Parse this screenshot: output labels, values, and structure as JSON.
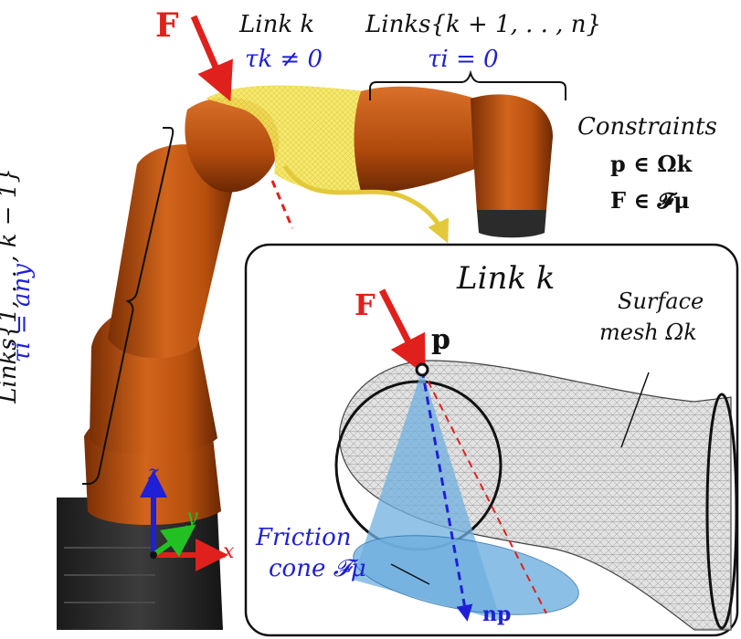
{
  "force_label": "F",
  "link_k": {
    "name": "Link k",
    "torque": "τk ≠ 0"
  },
  "links_distal": {
    "name": "Links{k + 1, . . , n}",
    "torque": "τi = 0"
  },
  "links_proximal": {
    "name": "Links{1, . . , k − 1}",
    "torque": "τi = any"
  },
  "constraints": {
    "title": "Constraints",
    "line1": "p ∈ Ωk",
    "line2": "F ∈ 𝓕μ"
  },
  "inset": {
    "title": "Link k",
    "force_label": "F",
    "point_label": "p",
    "surface_label_line1": "Surface",
    "surface_label_line2": "mesh Ωk",
    "cone_label_line1": "Friction",
    "cone_label_line2": "cone 𝓕μ",
    "normal_label": "np"
  },
  "axes": {
    "x": "x",
    "y": "y",
    "z": "z"
  },
  "colors": {
    "robot_orange": "#b8500e",
    "robot_dark": "#2a2a2a",
    "highlight_yellow": "#f2e14a",
    "force_red": "#e0201c",
    "label_blue": "#1f1fd6",
    "cone_blue": "#6fb0e0",
    "mesh_gray": "#d8d8d8"
  }
}
